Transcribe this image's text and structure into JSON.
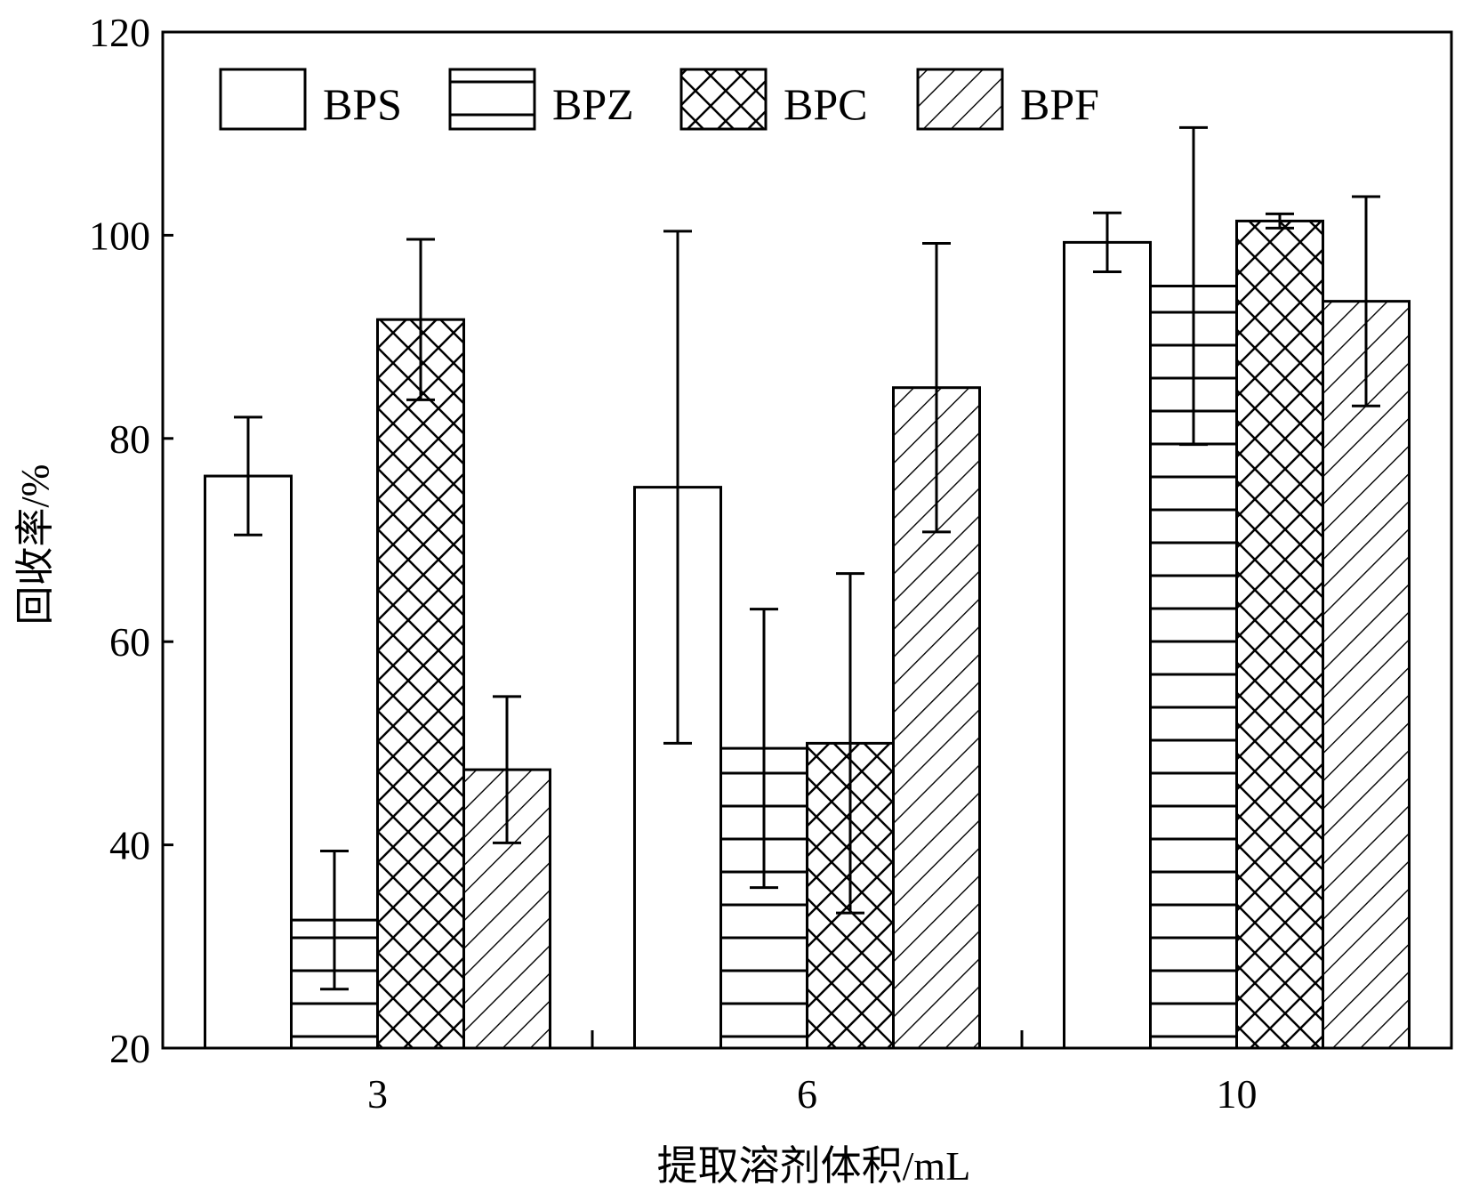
{
  "chart_data": {
    "type": "bar",
    "title": "",
    "xlabel": "提取溶剂体积/mL",
    "ylabel": "回收率/%",
    "categories": [
      "3",
      "6",
      "10"
    ],
    "ylim": [
      20,
      120
    ],
    "yticks": [
      20,
      40,
      60,
      80,
      100,
      120
    ],
    "grid": false,
    "legend": "top-left",
    "series": [
      {
        "name": "BPS",
        "pattern": "none",
        "values": [
          76.3,
          75.2,
          99.3
        ],
        "errors": [
          5.8,
          25.2,
          2.9
        ]
      },
      {
        "name": "BPZ",
        "pattern": "horizontal",
        "values": [
          32.6,
          49.5,
          95.0
        ],
        "errors": [
          6.8,
          13.7,
          15.6
        ]
      },
      {
        "name": "BPC",
        "pattern": "crosshatch",
        "values": [
          91.7,
          50.0,
          101.4
        ],
        "errors": [
          7.9,
          16.7,
          0.7
        ]
      },
      {
        "name": "BPF",
        "pattern": "diagonal",
        "values": [
          47.4,
          85.0,
          93.5
        ],
        "errors": [
          7.2,
          14.2,
          10.3
        ]
      }
    ]
  }
}
